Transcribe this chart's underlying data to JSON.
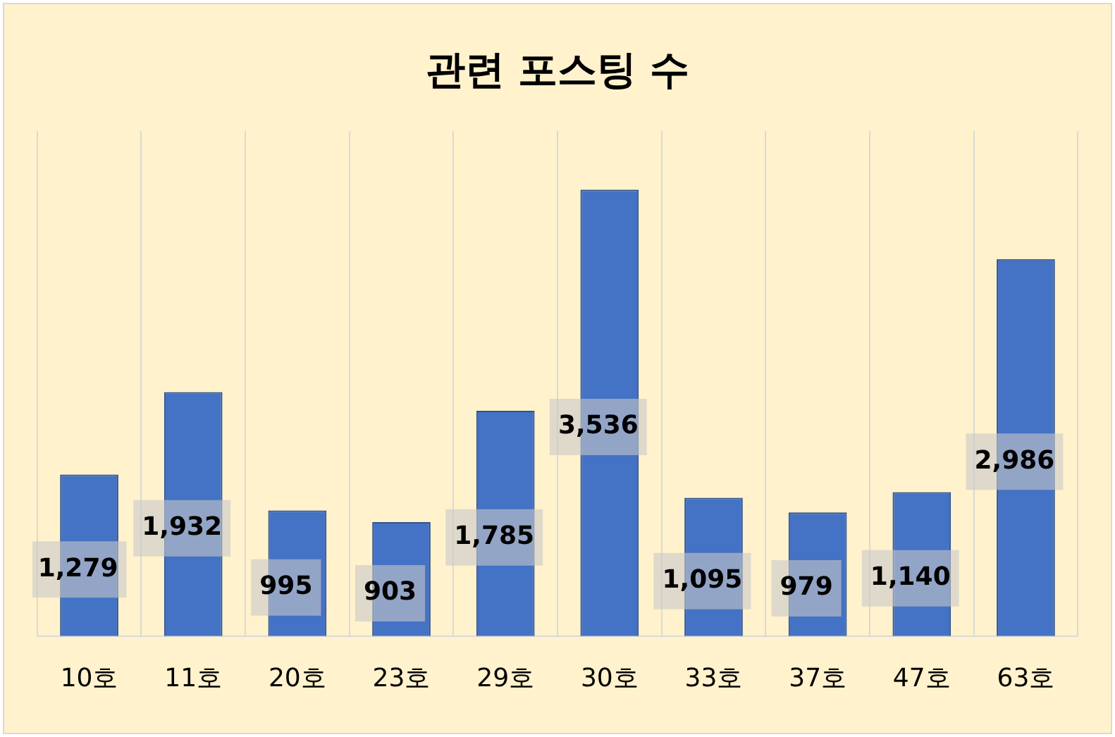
{
  "chart_data": {
    "type": "bar",
    "title": "관련 포스팅 수",
    "categories": [
      "10호",
      "11호",
      "20호",
      "23호",
      "29호",
      "30호",
      "33호",
      "37호",
      "47호",
      "63호"
    ],
    "values": [
      1279,
      1932,
      995,
      903,
      1785,
      3536,
      1095,
      979,
      1140,
      2986
    ],
    "value_labels": [
      "1,279",
      "1,932",
      "995",
      "903",
      "1,785",
      "3,536",
      "1,095",
      "979",
      "1,140",
      "2,986"
    ],
    "color": "#4472c4",
    "grid": "x"
  }
}
